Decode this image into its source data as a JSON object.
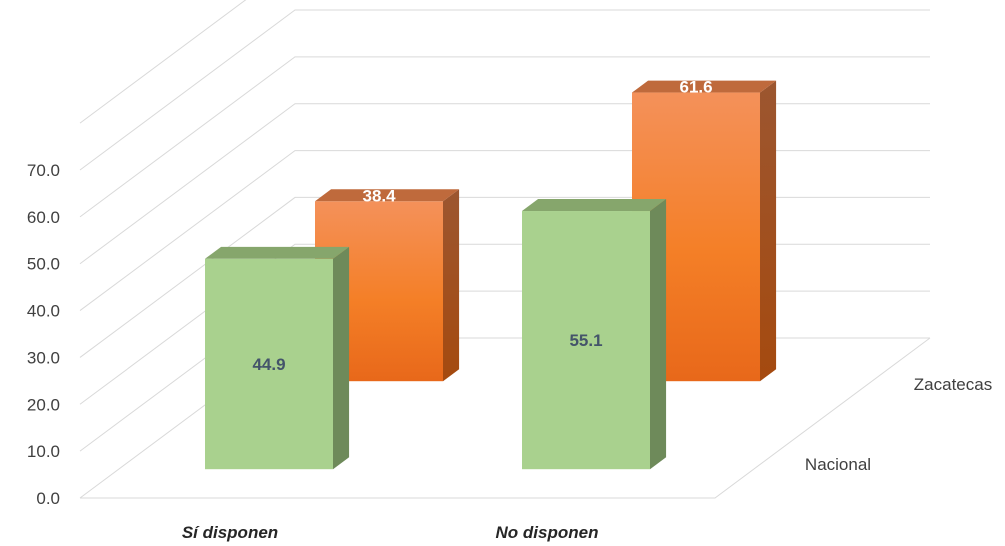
{
  "chart_data": {
    "type": "bar",
    "categories": [
      "Sí disponen",
      "No disponen"
    ],
    "series": [
      {
        "name": "Nacional",
        "values": [
          44.9,
          55.1
        ],
        "color": "#a9d18e"
      },
      {
        "name": "Zacatecas",
        "values": [
          38.4,
          61.6
        ],
        "color": "#f4862a"
      }
    ],
    "y_ticks": [
      "0.0",
      "10.0",
      "20.0",
      "30.0",
      "40.0",
      "50.0",
      "60.0",
      "70.0"
    ],
    "ylim": [
      0,
      70
    ],
    "grid": true,
    "title": "",
    "xlabel": "",
    "ylabel": ""
  }
}
